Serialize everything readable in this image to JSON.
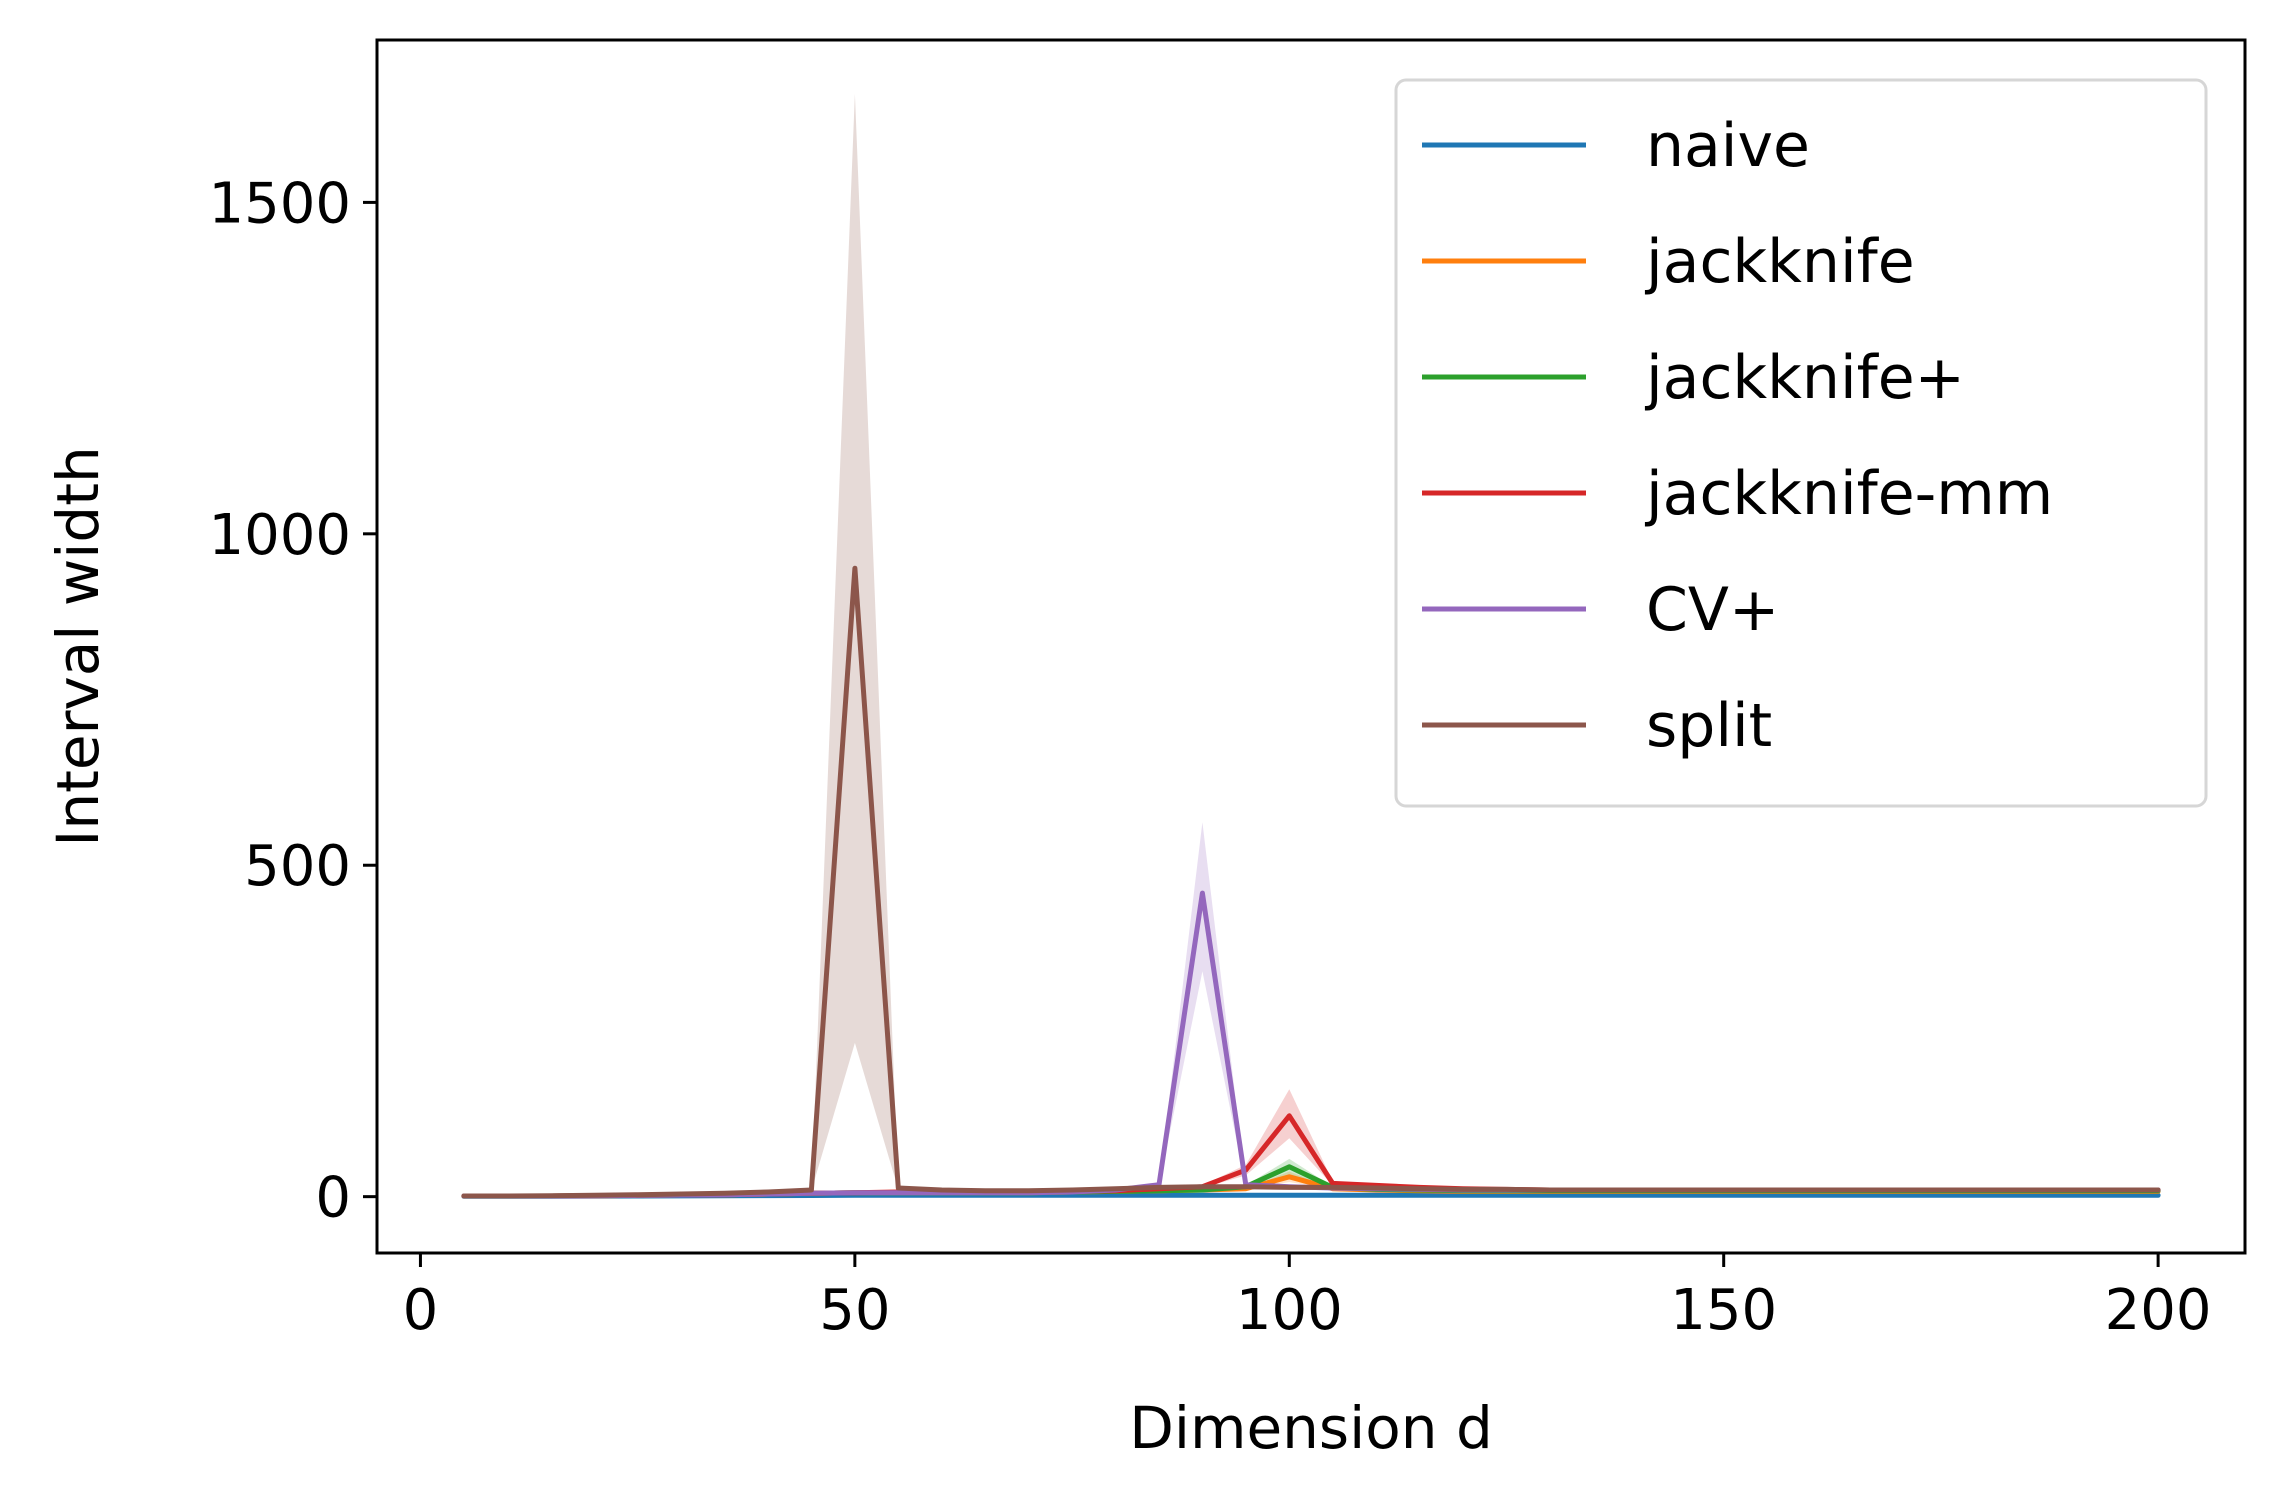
{
  "chart_data": {
    "type": "line",
    "xlabel": "Dimension d",
    "ylabel": "Interval width",
    "xlim": [
      -5,
      210
    ],
    "ylim": [
      -85,
      1745
    ],
    "xticks": [
      0,
      50,
      100,
      150,
      200
    ],
    "yticks": [
      0,
      500,
      1000,
      1500
    ],
    "legend_position": "top-right",
    "grid": false,
    "x": [
      5,
      10,
      15,
      20,
      25,
      30,
      35,
      40,
      45,
      50,
      55,
      60,
      65,
      70,
      75,
      80,
      85,
      90,
      95,
      100,
      105,
      110,
      115,
      120,
      125,
      130,
      135,
      140,
      145,
      150,
      155,
      160,
      165,
      170,
      175,
      180,
      185,
      190,
      195,
      200
    ],
    "series": [
      {
        "name": "naive",
        "color": "#1f77b4",
        "values": [
          0.5,
          0.6,
          0.7,
          0.8,
          1.0,
          1.2,
          1.4,
          1.6,
          1.8,
          2.0,
          2.0,
          2.0,
          2.0,
          2.0,
          2.0,
          2.0,
          2.0,
          2.0,
          2.0,
          2.0,
          2.0,
          2.0,
          2.0,
          2.0,
          2.0,
          2.0,
          2.0,
          2.0,
          2.0,
          2.0,
          2.0,
          2.0,
          2.0,
          2.0,
          2.0,
          2.0,
          2.0,
          2.0,
          2.0,
          2.0
        ],
        "lower": [
          0.4,
          0.5,
          0.6,
          0.7,
          0.9,
          1.1,
          1.3,
          1.5,
          1.7,
          1.9,
          1.9,
          1.9,
          1.9,
          1.9,
          1.9,
          1.9,
          1.9,
          1.9,
          1.9,
          1.9,
          1.9,
          1.9,
          1.9,
          1.9,
          1.9,
          1.9,
          1.9,
          1.9,
          1.9,
          1.9,
          1.9,
          1.9,
          1.9,
          1.9,
          1.9,
          1.9,
          1.9,
          1.9,
          1.9,
          1.9
        ],
        "upper": [
          0.6,
          0.7,
          0.8,
          0.9,
          1.1,
          1.3,
          1.5,
          1.7,
          1.9,
          2.1,
          2.1,
          2.1,
          2.1,
          2.1,
          2.1,
          2.1,
          2.1,
          2.1,
          2.1,
          2.1,
          2.1,
          2.1,
          2.1,
          2.1,
          2.1,
          2.1,
          2.1,
          2.1,
          2.1,
          2.1,
          2.1,
          2.1,
          2.1,
          2.1,
          2.1,
          2.1,
          2.1,
          2.1,
          2.1,
          2.1
        ]
      },
      {
        "name": "jackknife",
        "color": "#ff7f0e",
        "values": [
          1,
          1,
          1,
          1.5,
          2,
          2.5,
          3,
          4,
          5,
          6,
          6,
          6,
          6,
          6,
          7,
          8,
          9,
          10,
          12,
          30,
          12,
          10,
          9,
          8,
          8,
          8,
          8,
          8,
          8,
          8,
          8,
          8,
          8,
          8,
          8,
          8,
          8,
          8,
          8,
          8
        ],
        "lower": [
          1,
          1,
          1,
          1.5,
          2,
          2.5,
          3,
          4,
          5,
          6,
          6,
          6,
          6,
          6,
          7,
          8,
          9,
          10,
          12,
          22,
          12,
          10,
          9,
          8,
          8,
          8,
          8,
          8,
          8,
          8,
          8,
          8,
          8,
          8,
          8,
          8,
          8,
          8,
          8,
          8
        ],
        "upper": [
          1,
          1,
          1,
          1.5,
          2,
          2.5,
          3,
          4,
          5,
          6,
          6,
          6,
          6,
          6,
          7,
          8,
          9,
          10,
          12,
          38,
          12,
          10,
          9,
          8,
          8,
          8,
          8,
          8,
          8,
          8,
          8,
          8,
          8,
          8,
          8,
          8,
          8,
          8,
          8,
          8
        ]
      },
      {
        "name": "jackknife+",
        "color": "#2ca02c",
        "values": [
          1,
          1,
          1,
          1.5,
          2,
          2.5,
          3,
          4,
          5,
          6,
          6,
          6,
          6,
          6,
          7,
          8,
          9,
          10,
          15,
          45,
          14,
          11,
          10,
          9,
          9,
          9,
          9,
          9,
          9,
          9,
          9,
          9,
          9,
          9,
          9,
          9,
          9,
          9,
          9,
          9
        ],
        "lower": [
          1,
          1,
          1,
          1.5,
          2,
          2.5,
          3,
          4,
          5,
          6,
          6,
          6,
          6,
          6,
          7,
          8,
          9,
          10,
          13,
          33,
          13,
          11,
          10,
          9,
          9,
          9,
          9,
          9,
          9,
          9,
          9,
          9,
          9,
          9,
          9,
          9,
          9,
          9,
          9,
          9
        ],
        "upper": [
          1,
          1,
          1,
          1.5,
          2,
          2.5,
          3,
          4,
          5,
          6,
          6,
          6,
          6,
          6,
          7,
          8,
          9,
          10,
          17,
          57,
          15,
          12,
          11,
          10,
          10,
          10,
          10,
          10,
          10,
          10,
          10,
          10,
          10,
          10,
          10,
          10,
          10,
          10,
          10,
          10
        ]
      },
      {
        "name": "jackknife-mm",
        "color": "#d62728",
        "values": [
          1,
          1,
          1,
          1.5,
          2,
          2.5,
          3,
          4,
          5,
          6,
          7,
          7,
          7,
          7,
          8,
          9,
          12,
          15,
          40,
          122,
          20,
          17,
          14,
          12,
          11,
          10,
          10,
          10,
          10,
          10,
          10,
          10,
          10,
          10,
          10,
          10,
          10,
          10,
          10,
          10
        ],
        "lower": [
          1,
          1,
          1,
          1.5,
          2,
          2.5,
          3,
          4,
          5,
          6,
          7,
          7,
          7,
          7,
          8,
          9,
          11,
          13,
          32,
          88,
          17,
          15,
          13,
          11,
          10,
          9,
          9,
          9,
          9,
          9,
          9,
          9,
          9,
          9,
          9,
          9,
          9,
          9,
          9,
          9
        ],
        "upper": [
          1,
          1,
          1,
          1.5,
          2,
          2.5,
          3,
          4,
          5,
          6,
          7,
          7,
          7,
          7,
          8,
          9,
          13,
          17,
          48,
          162,
          23,
          19,
          15,
          13,
          12,
          11,
          11,
          11,
          11,
          11,
          11,
          11,
          11,
          11,
          11,
          11,
          11,
          11,
          11,
          11
        ]
      },
      {
        "name": "CV+",
        "color": "#9467bd",
        "values": [
          1,
          1,
          1,
          1.5,
          2,
          2.5,
          3,
          4,
          5,
          6,
          6,
          6,
          6,
          6,
          7,
          10,
          18,
          458,
          18,
          15,
          13,
          12,
          11,
          10,
          10,
          10,
          10,
          10,
          10,
          10,
          10,
          10,
          10,
          10,
          10,
          10,
          10,
          10,
          10,
          10
        ],
        "lower": [
          1,
          1,
          1,
          1.5,
          2,
          2.5,
          3,
          4,
          5,
          6,
          6,
          6,
          6,
          6,
          7,
          9,
          16,
          340,
          16,
          14,
          12,
          11,
          10,
          9,
          9,
          9,
          9,
          9,
          9,
          9,
          9,
          9,
          9,
          9,
          9,
          9,
          9,
          9,
          9,
          9
        ],
        "upper": [
          1,
          1,
          1,
          1.5,
          2,
          2.5,
          3,
          4,
          5,
          6,
          6,
          6,
          6,
          6,
          7,
          11,
          20,
          565,
          20,
          16,
          14,
          13,
          12,
          11,
          11,
          11,
          11,
          11,
          11,
          11,
          11,
          11,
          11,
          11,
          11,
          11,
          11,
          11,
          11,
          11
        ]
      },
      {
        "name": "split",
        "color": "#8c564b",
        "values": [
          1,
          1,
          1.5,
          2,
          3,
          4,
          5,
          7,
          10,
          948,
          13,
          10,
          9,
          9,
          10,
          12,
          14,
          15,
          15,
          14,
          14,
          13,
          12,
          11,
          11,
          10,
          10,
          10,
          10,
          10,
          10,
          10,
          10,
          10,
          10,
          10,
          10,
          10,
          10,
          10
        ],
        "lower": [
          1,
          1,
          1.5,
          2,
          3,
          4,
          5,
          7,
          9,
          232,
          11,
          9,
          8,
          8,
          9,
          11,
          13,
          14,
          14,
          13,
          13,
          12,
          11,
          10,
          10,
          9,
          9,
          9,
          9,
          9,
          9,
          9,
          9,
          9,
          9,
          9,
          9,
          9,
          9,
          9
        ],
        "upper": [
          1,
          1,
          1.5,
          2,
          3,
          4,
          5,
          7,
          11,
          1664,
          15,
          11,
          10,
          10,
          11,
          13,
          15,
          16,
          16,
          15,
          15,
          14,
          13,
          12,
          12,
          11,
          11,
          11,
          11,
          11,
          11,
          11,
          11,
          11,
          11,
          11,
          11,
          11,
          11,
          11
        ]
      }
    ]
  }
}
